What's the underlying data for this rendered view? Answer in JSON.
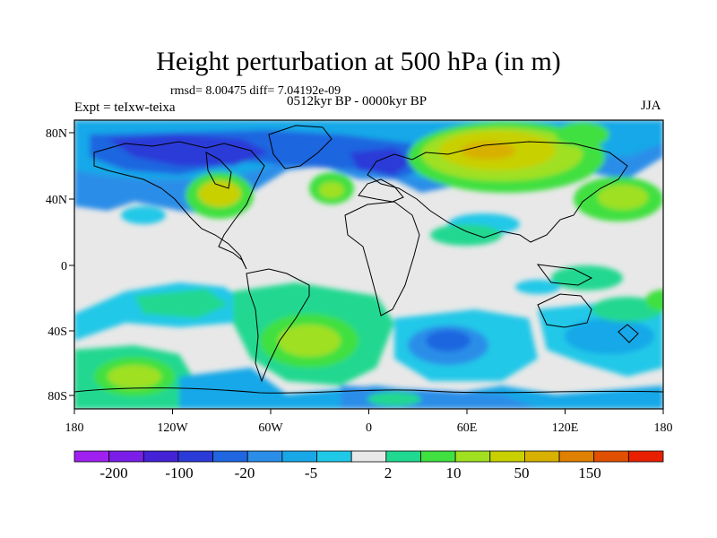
{
  "title": "Height perturbation at 500 hPa (in m)",
  "stats": "rmsd= 8.00475 diff= 7.04192e-09",
  "subtitle": "0512kyr BP - 0000kyr BP",
  "expt": "Expt = teIxw-teixa",
  "season": "JJA",
  "lat_ticks": [
    "80N",
    "40N",
    "0",
    "40S",
    "80S"
  ],
  "lon_ticks": [
    "180",
    "120W",
    "60W",
    "0",
    "60E",
    "120E",
    "180"
  ],
  "colorbar": {
    "colors": [
      "#a020f0",
      "#7a1ee8",
      "#4422d6",
      "#2a3bd8",
      "#1f66e0",
      "#2a8ee8",
      "#18a8e8",
      "#20c8e8",
      "#e8e8e8",
      "#20d890",
      "#40e040",
      "#a0e020",
      "#c8d000",
      "#d8b000",
      "#e08000",
      "#e05000",
      "#e82000"
    ],
    "labels": [
      "-200",
      "-100",
      "-20",
      "-5",
      "2",
      "10",
      "50",
      "150"
    ]
  }
}
